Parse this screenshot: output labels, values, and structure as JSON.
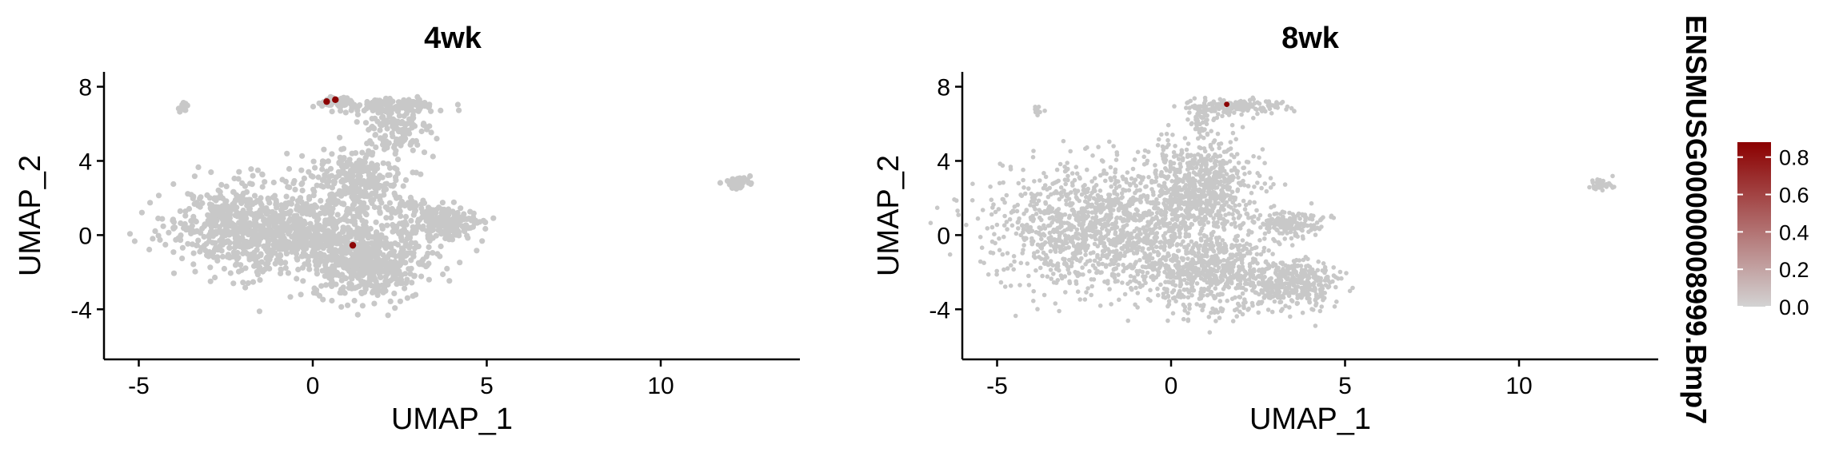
{
  "chart_data": {
    "type": "scatter",
    "feature_title": "ENSMUSG00000008999.Bmp7",
    "panels": [
      {
        "title": "4wk",
        "xlabel": "UMAP_1",
        "ylabel": "UMAP_2",
        "xlim": [
          -6.0,
          14.0
        ],
        "ylim": [
          -6.7,
          8.8
        ],
        "xticks": [
          -5,
          0,
          5,
          10
        ],
        "yticks": [
          -4,
          0,
          4,
          8
        ],
        "background_clusters": [
          {
            "cx": -0.3,
            "cy": 0.1,
            "rx": 3.1,
            "ry": 1.9,
            "n": 900
          },
          {
            "cx": -2.3,
            "cy": 0.7,
            "rx": 1.4,
            "ry": 2.2,
            "n": 260
          },
          {
            "cx": 1.7,
            "cy": -1.8,
            "rx": 1.5,
            "ry": 1.5,
            "n": 380
          },
          {
            "cx": 1.2,
            "cy": 3.0,
            "rx": 1.3,
            "ry": 1.6,
            "n": 260
          },
          {
            "cx": 2.4,
            "cy": 5.6,
            "rx": 0.9,
            "ry": 1.3,
            "n": 120
          },
          {
            "cx": 2.3,
            "cy": 6.95,
            "rx": 1.3,
            "ry": 0.35,
            "n": 120
          },
          {
            "cx": 0.7,
            "cy": 7.2,
            "rx": 0.55,
            "ry": 0.3,
            "n": 45
          },
          {
            "cx": 3.8,
            "cy": 0.6,
            "rx": 0.9,
            "ry": 0.75,
            "n": 200
          },
          {
            "cx": 2.8,
            "cy": 1.5,
            "rx": 0.6,
            "ry": 0.45,
            "n": 40
          },
          {
            "cx": -3.7,
            "cy": 7.0,
            "rx": 0.12,
            "ry": 0.3,
            "n": 12
          },
          {
            "cx": 12.2,
            "cy": 2.8,
            "rx": 0.35,
            "ry": 0.25,
            "n": 35
          }
        ],
        "expressing_cells": [
          {
            "x": 0.4,
            "y": 7.2,
            "value": 0.9
          },
          {
            "x": 0.65,
            "y": 7.3,
            "value": 0.9
          },
          {
            "x": 1.15,
            "y": -0.55,
            "value": 0.85
          }
        ]
      },
      {
        "title": "8wk",
        "xlabel": "UMAP_1",
        "ylabel": "UMAP_2",
        "xlim": [
          -6.0,
          14.0
        ],
        "ylim": [
          -6.7,
          8.8
        ],
        "xticks": [
          -5,
          0,
          5,
          10
        ],
        "yticks": [
          -4,
          0,
          4,
          8
        ],
        "background_clusters": [
          {
            "cx": -2.0,
            "cy": 0.5,
            "rx": 2.7,
            "ry": 3.0,
            "n": 1300
          },
          {
            "cx": 0.9,
            "cy": 2.6,
            "rx": 1.4,
            "ry": 2.2,
            "n": 650
          },
          {
            "cx": 1.2,
            "cy": -2.0,
            "rx": 1.7,
            "ry": 2.0,
            "n": 650
          },
          {
            "cx": 3.6,
            "cy": -2.6,
            "rx": 1.0,
            "ry": 1.1,
            "n": 350
          },
          {
            "cx": 3.4,
            "cy": 0.6,
            "rx": 0.9,
            "ry": 0.65,
            "n": 150
          },
          {
            "cx": 1.9,
            "cy": 6.9,
            "rx": 1.3,
            "ry": 0.4,
            "n": 130
          },
          {
            "cx": 0.8,
            "cy": 6.4,
            "rx": 0.35,
            "ry": 0.8,
            "n": 60
          },
          {
            "cx": -3.8,
            "cy": 6.7,
            "rx": 0.12,
            "ry": 0.35,
            "n": 10
          },
          {
            "cx": 12.4,
            "cy": 2.7,
            "rx": 0.35,
            "ry": 0.25,
            "n": 40
          }
        ],
        "expressing_cells": [
          {
            "x": 1.6,
            "y": 7.05,
            "value": 0.9
          }
        ]
      }
    ],
    "colorbar": {
      "low_color": "#D3D3D3",
      "high_color": "#8B0000",
      "range": [
        0.0,
        0.88
      ],
      "ticks": [
        "0.0",
        "0.2",
        "0.4",
        "0.6",
        "0.8"
      ],
      "tick_values": [
        0.0,
        0.2,
        0.4,
        0.6,
        0.8
      ]
    },
    "point_color": "#C8C8C8"
  }
}
